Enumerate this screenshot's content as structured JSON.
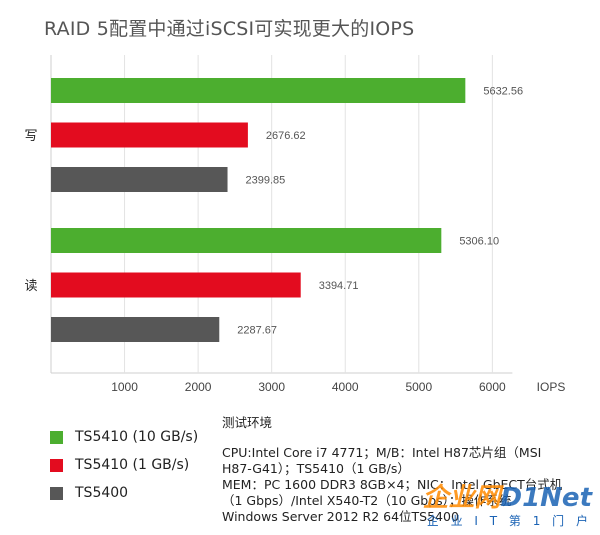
{
  "chart_data": {
    "type": "bar",
    "orientation": "horizontal",
    "title": "RAID 5配置中通过iSCSI可实现更大的IOPS",
    "xlabel": "IOPS",
    "xlim": [
      0,
      6000
    ],
    "xticks": [
      "1000",
      "2000",
      "3000",
      "4000",
      "5000",
      "6000"
    ],
    "grid": true,
    "categories": [
      "写",
      "读"
    ],
    "series": [
      {
        "name": "TS5410 (10 GB/s)",
        "color": "#4cae2f",
        "values": [
          5632.56,
          5306.1
        ],
        "labels": [
          "5632.56",
          "5306.10"
        ]
      },
      {
        "name": "TS5410 (1 GB/s)",
        "color": "#e30c1f",
        "values": [
          2676.62,
          3394.71
        ],
        "labels": [
          "2676.62",
          "3394.71"
        ]
      },
      {
        "name": "TS5400",
        "color": "#575757",
        "values": [
          2399.85,
          2287.67
        ],
        "labels": [
          "2399.85",
          "2287.67"
        ]
      }
    ],
    "legend_position": "bottom-left"
  },
  "env": {
    "title": "测试环境",
    "lines": [
      "CPU:Intel Core i7 4771；M/B：Intel H87芯片组（MSI",
      "H87-G41）；TS5410（1 GB/s）",
      "MEM：PC 1600 DDR3 8GB×4；NIC：Intel GbECT台式机",
      "（1 Gbps）/Intel X540-T2（10 Gbps）；操作系统",
      "Windows Server 2012 R2 64位TS5400"
    ]
  },
  "watermark": {
    "prefix": "企业网",
    "suffix": "D1Net",
    "sub": "企 业 I T 第 1 门 户"
  }
}
